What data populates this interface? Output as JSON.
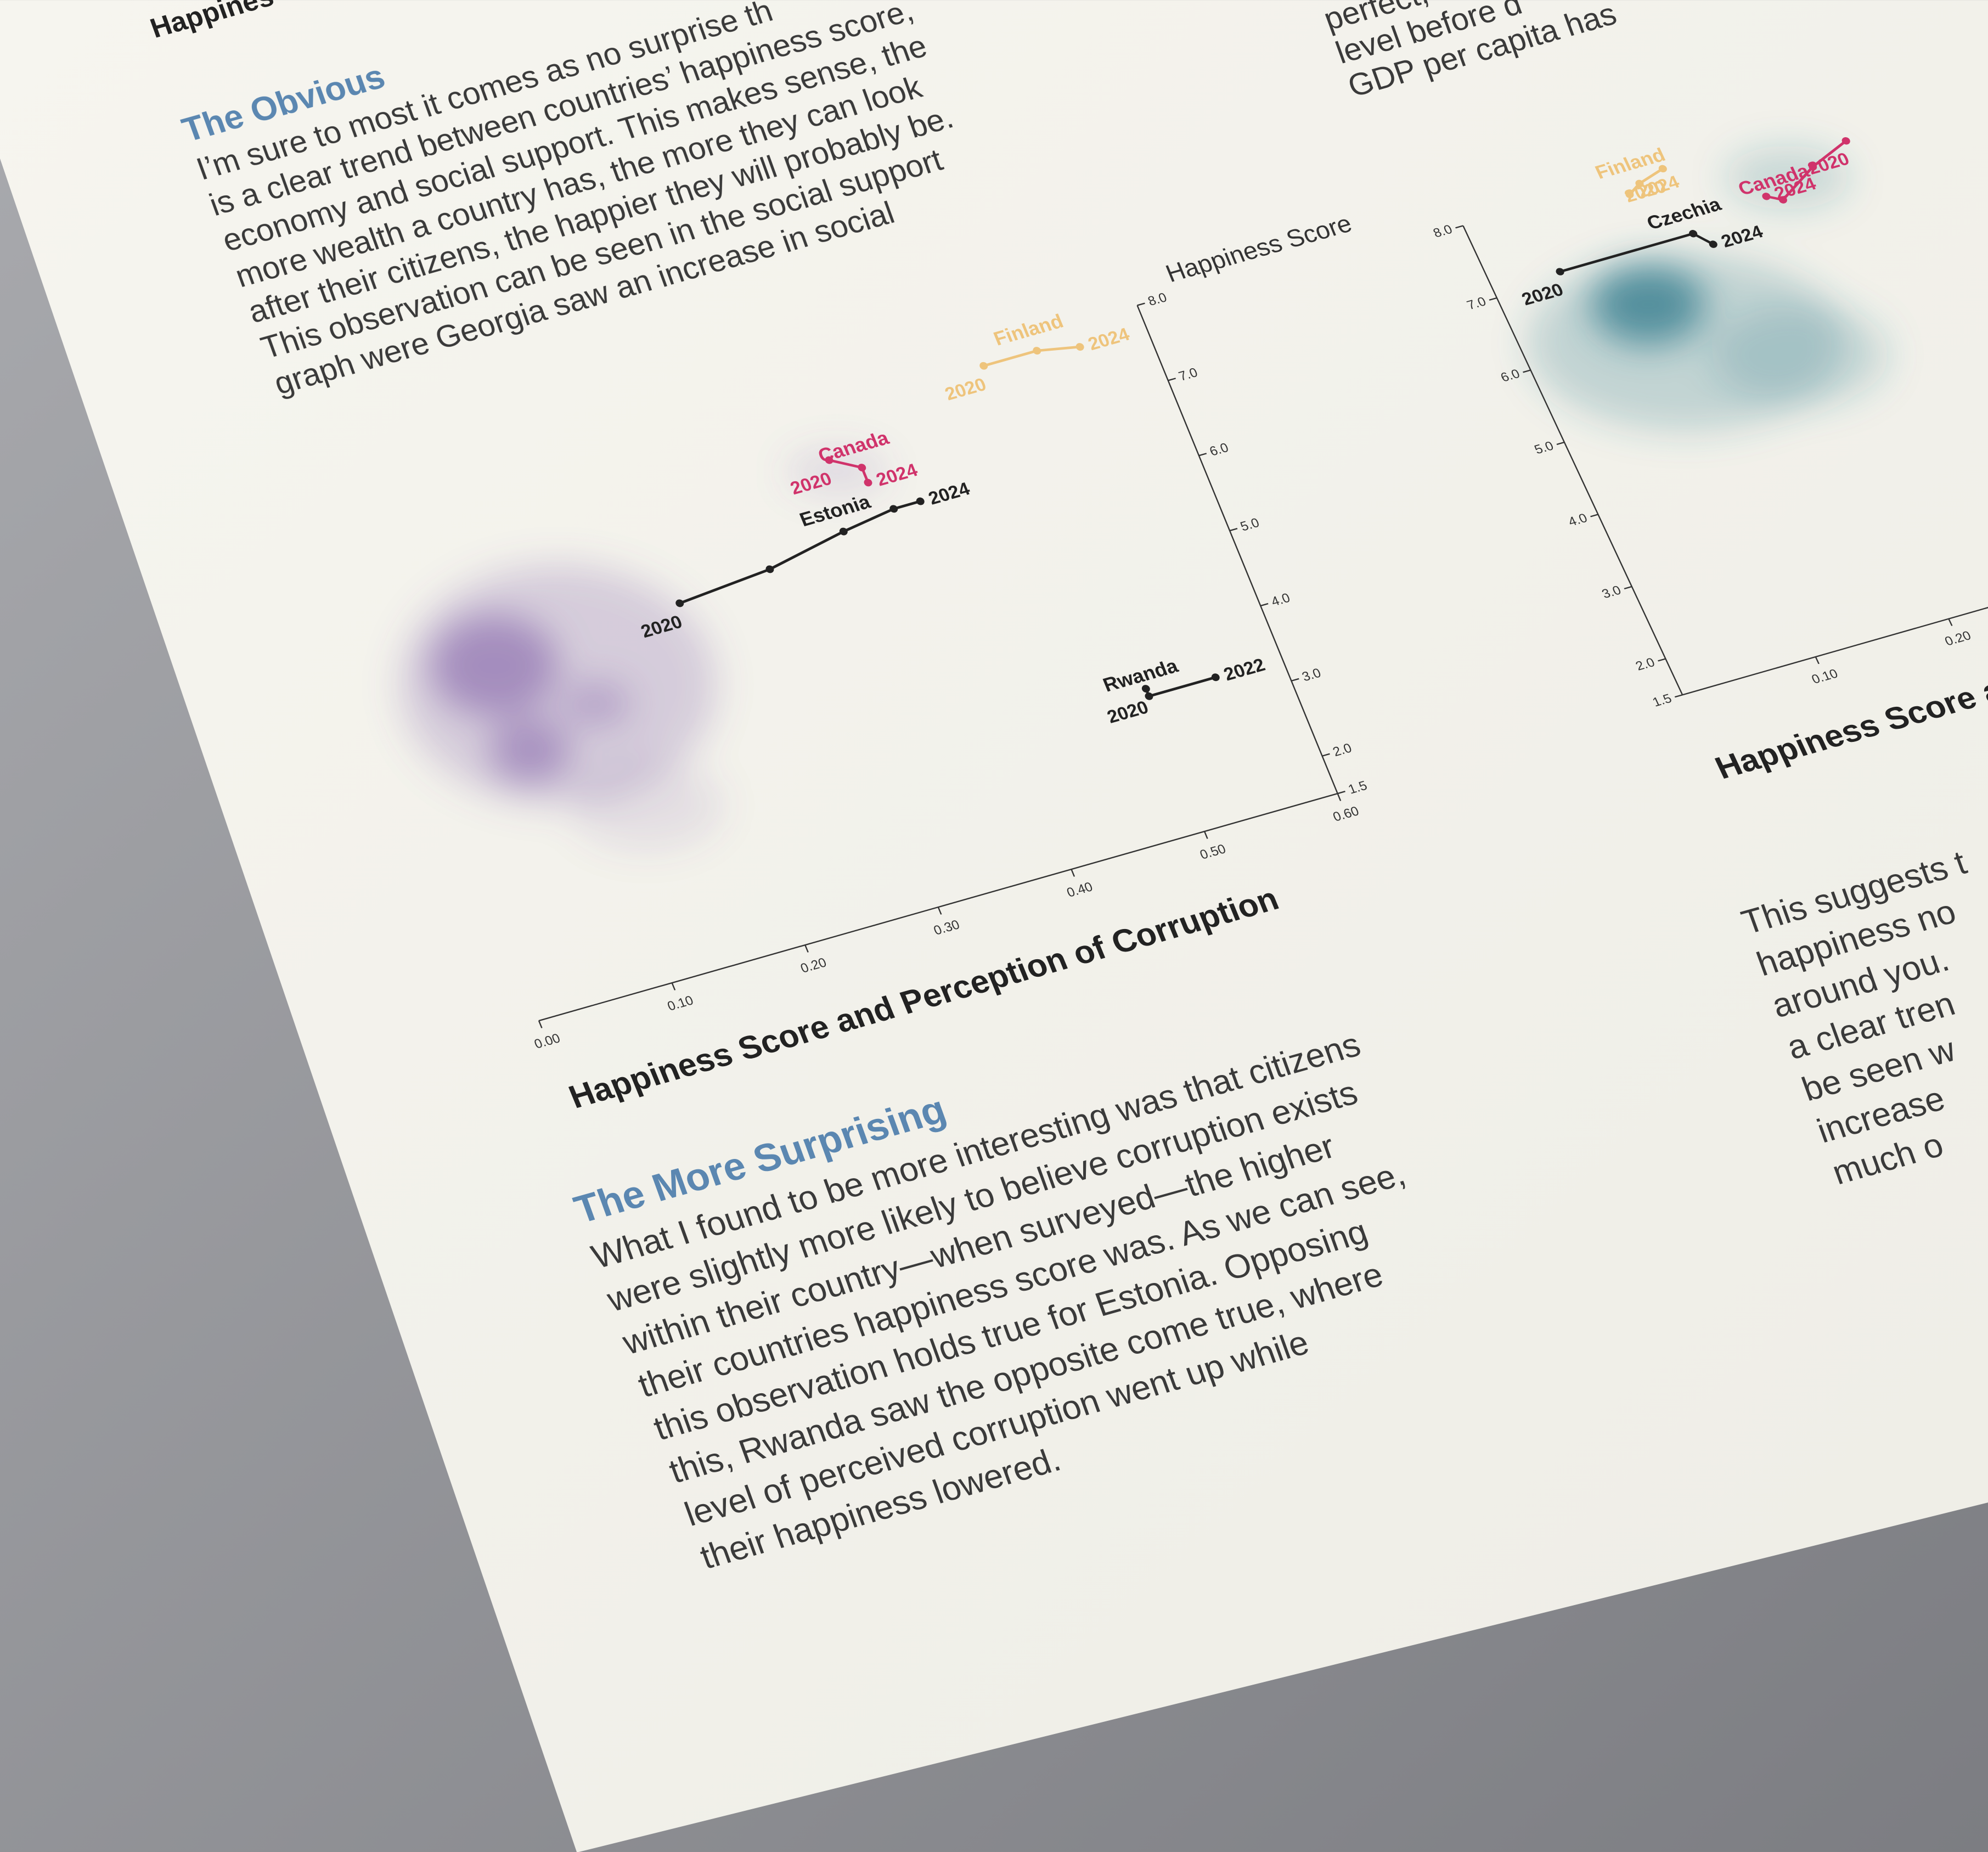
{
  "header": {
    "title": "Happines"
  },
  "top_right_text": [
    "perfect,",
    "level before d",
    "GDP per capita has"
  ],
  "sections": [
    {
      "heading": "The Obvious",
      "lines": [
        "I’m sure to most it comes as no surprise th",
        "is a clear trend between countries’ happiness score,",
        "economy and social support. This makes sense, the",
        "more wealth a country has, the more they can look",
        "after their citizens, the happier they will probably be.",
        "This observation can be seen in the social support",
        "graph were Georgia saw an increase in social"
      ]
    },
    {
      "heading": "The More Surprising",
      "lines": [
        "What I found to be more interesting was that citizens",
        "were slightly more likely to believe corruption exists",
        "within their country—when surveyed—the higher",
        "their countries happiness score was. As we can see,",
        "this observation holds true for Estonia. Opposing",
        "this, Rwanda saw the opposite come true, where",
        "level of perceived corruption went up while",
        "their happiness lowered."
      ]
    }
  ],
  "right_text": [
    "This suggests t",
    "happiness no",
    "around you.",
    "a clear tren",
    "be seen w",
    "increase",
    "much o"
  ],
  "chart_data": [
    {
      "type": "line",
      "title": "Happiness Score and Perception of Corruption",
      "y_label": "Happiness Score",
      "xlim": [
        0,
        0.6
      ],
      "ylim": [
        1.5,
        8
      ],
      "y_axis_side": "right",
      "density_color": "#7b5aa6",
      "xticks": [
        {
          "value": 0,
          "label": "0.00"
        },
        {
          "value": 0.1,
          "label": "0.10"
        },
        {
          "value": 0.2,
          "label": "0.20"
        },
        {
          "value": 0.3,
          "label": "0.30"
        },
        {
          "value": 0.4,
          "label": "0.40"
        },
        {
          "value": 0.5,
          "label": "0.50"
        },
        {
          "value": 0.6,
          "label": "0.60"
        }
      ],
      "yticks": [
        1.5,
        {
          "value": 2,
          "label": "2.0"
        },
        {
          "value": 3,
          "label": "3.0"
        },
        {
          "value": 4,
          "label": "4.0"
        },
        {
          "value": 5,
          "label": "5.0"
        },
        {
          "value": 6,
          "label": "6.0"
        },
        {
          "value": 7,
          "label": "7.0"
        },
        {
          "value": 8,
          "label": "8.0"
        }
      ],
      "series": [
        {
          "name": "Estonia",
          "color": "#222222",
          "x": [
            0.21,
            0.28,
            0.34,
            0.38,
            0.4
          ],
          "y": [
            6.0,
            6.1,
            6.3,
            6.4,
            6.4
          ],
          "point_labels": [
            "2020",
            null,
            null,
            null,
            "2024"
          ]
        },
        {
          "name": "Canada",
          "color": "#d0336b",
          "x": [
            0.35,
            0.37,
            0.37
          ],
          "y": [
            7.2,
            7.0,
            6.8
          ],
          "point_labels": [
            "2020",
            null,
            "2024"
          ]
        },
        {
          "name": "Finland",
          "color": "#eec47c",
          "x": [
            0.48,
            0.52,
            0.55
          ],
          "y": [
            7.8,
            7.8,
            7.7
          ],
          "point_labels": [
            "2020",
            null,
            "2024"
          ]
        },
        {
          "name": "Rwanda",
          "color": "#222222",
          "x": [
            0.5,
            0.5,
            0.55
          ],
          "y": [
            3.4,
            3.3,
            3.3
          ],
          "point_labels": [
            "2020",
            null,
            "2022"
          ]
        }
      ]
    },
    {
      "type": "line",
      "title": "Happiness Score a",
      "xlim": [
        0,
        0.6
      ],
      "ylim": [
        1.5,
        8
      ],
      "y_axis_side": "left",
      "density_color": "#2f7b8c",
      "xticks": [
        {
          "value": 0.1,
          "label": "0.10"
        },
        {
          "value": 0.2,
          "label": "0.20"
        }
      ],
      "yticks": [
        1.5,
        {
          "value": 2,
          "label": "2.0"
        },
        {
          "value": 3,
          "label": "3.0"
        },
        {
          "value": 4,
          "label": "4.0"
        },
        {
          "value": 5,
          "label": "5.0"
        },
        {
          "value": 6,
          "label": "6.0"
        },
        {
          "value": 7,
          "label": "7.0"
        },
        {
          "value": 8,
          "label": "8.0"
        }
      ],
      "series": [
        {
          "name": "Czechia",
          "color": "#222222",
          "x": [
            0.05,
            0.15,
            0.16
          ],
          "y": [
            7.1,
            7.1,
            6.9
          ],
          "point_labels": [
            "2020",
            null,
            "2024"
          ]
        },
        {
          "name": "Finland",
          "color": "#eec47c",
          "x": [
            0.15,
            0.13,
            0.12
          ],
          "y": [
            8.0,
            7.9,
            7.8
          ],
          "point_labels": [
            "2020",
            null,
            "2024"
          ]
        },
        {
          "name": "Canada",
          "color": "#d0336b",
          "x": [
            0.28,
            0.25,
            0.22,
            0.21
          ],
          "y": [
            7.7,
            7.5,
            7.2,
            7.3
          ],
          "point_labels": [
            "2020",
            null,
            null,
            "2024"
          ]
        }
      ]
    }
  ]
}
